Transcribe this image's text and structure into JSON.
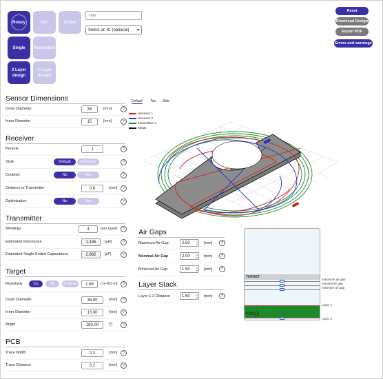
{
  "tiles": [
    {
      "label": "Rotary",
      "active": true
    },
    {
      "label": "Arc",
      "active": false
    },
    {
      "label": "Linear",
      "active": false
    },
    {
      "label": "Single",
      "active": true
    },
    {
      "label": "Redundant",
      "active": false
    },
    {
      "label": "2 Layer design",
      "active": true
    },
    {
      "label": "4 Layer design",
      "active": false
    }
  ],
  "header": {
    "title_placeholder": "Title",
    "ic_select": "Select an IC (optional)"
  },
  "actions": {
    "reset": "Reset",
    "download": "Download Design",
    "export": "Export PDF",
    "errors": "Errors and warnings"
  },
  "sensor": {
    "title": "Sensor Dimensions",
    "outer_label": "Outer Diameter",
    "outer_value": "38",
    "outer_unit": "[mm]",
    "inner_label": "Inner Diameter",
    "inner_value": "15",
    "inner_unit": "[mm]"
  },
  "receiver": {
    "title": "Receiver",
    "periods_label": "Periods",
    "periods_value": "1",
    "style_label": "Style",
    "style_default": "Default",
    "style_compact": "Compact",
    "doubled_label": "Doubled",
    "doubled_no": "No",
    "doubled_yes": "Yes",
    "distance_label": "Distance to Transmitter",
    "distance_value": "0.6",
    "distance_unit": "[mm]",
    "opt_label": "Optimization",
    "opt_no": "No",
    "opt_yes": "Yes"
  },
  "transmitter": {
    "title": "Transmitter",
    "windings_label": "Windings",
    "windings_value": "4",
    "windings_unit": "[per layer]",
    "inductance_label": "Estimated inductance",
    "inductance_value": "1.435",
    "inductance_unit": "[µH]",
    "capacitance_label": "Estimated Single-Ended Capacitance",
    "capacitance_value": "2.882",
    "capacitance_unit": "[pF]"
  },
  "target": {
    "title": "Target",
    "resistivity_label": "Resistivity",
    "res_cu": "Cu",
    "res_al": "Al",
    "res_custom": "Custom",
    "res_value": "1.68",
    "res_unit": "[1e-8Ω·m]",
    "outer_label": "Outer Diameter",
    "outer_value": "36.00",
    "outer_unit": "[mm]",
    "inner_label": "Inner Diameter",
    "inner_value": "13.00",
    "inner_unit": "[mm]",
    "angle_label": "Angle",
    "angle_value": "180.00",
    "angle_unit": "[°]"
  },
  "pcb": {
    "title": "PCB",
    "trace_width_label": "Trace Width",
    "trace_width_value": "0.2",
    "trace_width_unit": "[mm]",
    "trace_dist_label": "Trace Distance",
    "trace_dist_value": "0.2",
    "trace_dist_unit": "[mm]"
  },
  "view_tabs": {
    "default": "Default",
    "top": "Top",
    "side": "Side"
  },
  "legend": [
    {
      "label": "receivers 1",
      "color": "#d62020"
    },
    {
      "label": "receivers 2",
      "color": "#2233cc"
    },
    {
      "label": "transmitters 1",
      "color": "#1c8a2a"
    },
    {
      "label": "Target",
      "color": "#111111"
    }
  ],
  "air_gaps": {
    "title": "Air Gaps",
    "max_label": "Maximum Air Gap",
    "max_value": "2.50",
    "nom_label": "Nominal Air Gap",
    "nom_value": "2.00",
    "min_label": "Minimum Air Gap",
    "min_value": "1.50",
    "unit": "[mm]"
  },
  "layer_stack": {
    "title": "Layer Stack",
    "dist_label": "Layer 1-2 Distance",
    "dist_value": "1.60",
    "unit": "[mm]"
  },
  "stack_diagram": {
    "target_label": "TARGET",
    "max_gap": "maximum air gap",
    "nom_gap": "nominal air gap",
    "min_gap": "minimum air gap",
    "layer1": "Layer 1",
    "pcb_label": "PCB",
    "layer2": "Layer 2",
    "pcb_color": "#1c8a2a"
  }
}
